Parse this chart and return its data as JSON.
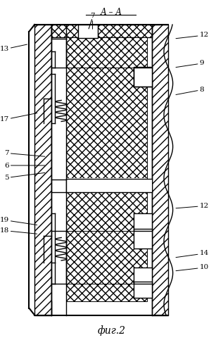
{
  "title": "фиг.2",
  "section_label": "А – А",
  "background_color": "#ffffff",
  "labels": {
    "7_top": {
      "xt": 0.415,
      "yt": 0.955,
      "xa": 0.415,
      "ya": 0.912,
      "ha": "center"
    },
    "12_top": {
      "xt": 0.895,
      "yt": 0.9,
      "xa": 0.78,
      "ya": 0.89,
      "ha": "left"
    },
    "13": {
      "xt": 0.04,
      "yt": 0.86,
      "xa": 0.13,
      "ya": 0.875,
      "ha": "right"
    },
    "9": {
      "xt": 0.895,
      "yt": 0.82,
      "xa": 0.78,
      "ya": 0.808,
      "ha": "left"
    },
    "8": {
      "xt": 0.895,
      "yt": 0.745,
      "xa": 0.78,
      "ya": 0.73,
      "ha": "left"
    },
    "17": {
      "xt": 0.04,
      "yt": 0.66,
      "xa": 0.175,
      "ya": 0.68,
      "ha": "right"
    },
    "7_mid": {
      "xt": 0.04,
      "yt": 0.565,
      "xa": 0.21,
      "ya": 0.555,
      "ha": "right"
    },
    "6": {
      "xt": 0.04,
      "yt": 0.53,
      "xa": 0.21,
      "ya": 0.53,
      "ha": "right"
    },
    "5": {
      "xt": 0.04,
      "yt": 0.495,
      "xa": 0.21,
      "ya": 0.51,
      "ha": "right"
    },
    "12_bot": {
      "xt": 0.895,
      "yt": 0.415,
      "xa": 0.78,
      "ya": 0.408,
      "ha": "left"
    },
    "19": {
      "xt": 0.04,
      "yt": 0.375,
      "xa": 0.175,
      "ya": 0.36,
      "ha": "right"
    },
    "18": {
      "xt": 0.04,
      "yt": 0.345,
      "xa": 0.175,
      "ya": 0.335,
      "ha": "right"
    },
    "14": {
      "xt": 0.895,
      "yt": 0.28,
      "xa": 0.78,
      "ya": 0.268,
      "ha": "left"
    },
    "10": {
      "xt": 0.895,
      "yt": 0.24,
      "xa": 0.78,
      "ya": 0.23,
      "ha": "left"
    }
  },
  "label_texts": {
    "7_top": "7",
    "12_top": "12",
    "13": "13",
    "9": "9",
    "8": "8",
    "17": "17",
    "7_mid": "7",
    "6": "6",
    "5": "5",
    "12_bot": "12",
    "19": "19",
    "18": "18",
    "14": "14",
    "10": "10"
  }
}
